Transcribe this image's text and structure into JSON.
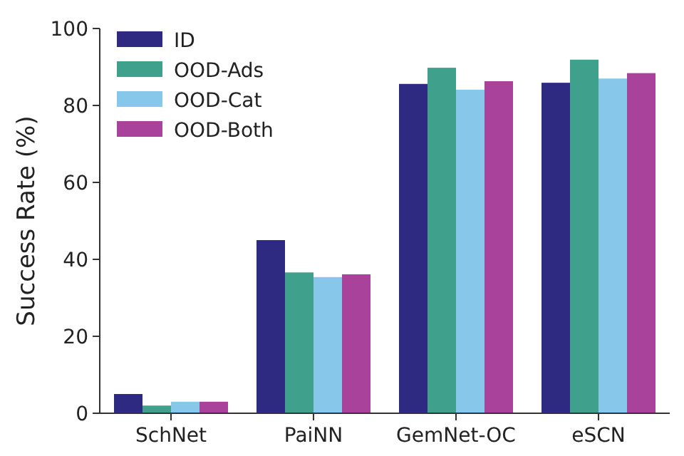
{
  "chart_data": {
    "type": "bar",
    "ylabel": "Success Rate (%)",
    "categories": [
      "SchNet",
      "PaiNN",
      "GemNet-OC",
      "eSCN"
    ],
    "series": [
      {
        "name": "ID",
        "color": "#2e2a82",
        "values": [
          5,
          45,
          85.6,
          85.9
        ]
      },
      {
        "name": "OOD-Ads",
        "color": "#3fa08c",
        "values": [
          2,
          36.6,
          89.8,
          91.9
        ]
      },
      {
        "name": "OOD-Cat",
        "color": "#87c8ea",
        "values": [
          3,
          35.4,
          84.1,
          87
        ]
      },
      {
        "name": "OOD-Both",
        "color": "#a8429a",
        "values": [
          3,
          36.1,
          86.3,
          88.4
        ]
      }
    ],
    "ylim": [
      0,
      100
    ],
    "yticks": [
      0,
      20,
      40,
      60,
      80,
      100
    ],
    "legend": "top left"
  }
}
